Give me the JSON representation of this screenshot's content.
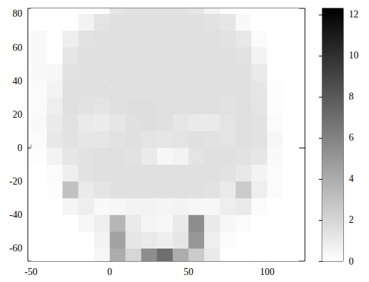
{
  "chart_data": {
    "type": "heatmap",
    "x": [
      -45,
      -35,
      -25,
      -15,
      -5,
      5,
      15,
      25,
      35,
      45,
      55,
      65,
      75,
      85,
      95,
      105,
      115
    ],
    "y": [
      85,
      75,
      65,
      55,
      45,
      35,
      25,
      15,
      5,
      -5,
      -15,
      -25,
      -35,
      -45,
      -55,
      -65
    ],
    "values": [
      [
        0,
        0,
        0,
        0,
        0,
        1.2,
        1.4,
        1.4,
        1.4,
        1.4,
        1.2,
        0.6,
        0,
        0,
        0,
        0,
        0
      ],
      [
        0,
        0,
        0,
        0.6,
        1.3,
        1.5,
        1.5,
        1.5,
        1.5,
        1.5,
        1.5,
        1.4,
        1.2,
        0.3,
        0,
        0,
        0
      ],
      [
        0.3,
        0,
        0.8,
        1.4,
        1.5,
        1.5,
        1.5,
        1.5,
        1.5,
        1.5,
        1.5,
        1.5,
        1.4,
        1.1,
        0.2,
        0,
        0
      ],
      [
        0.3,
        0,
        1.2,
        1.5,
        1.5,
        1.5,
        1.5,
        1.5,
        1.5,
        1.5,
        1.5,
        1.5,
        1.5,
        1.4,
        0.6,
        0,
        0
      ],
      [
        0.3,
        0.4,
        1.4,
        1.5,
        1.5,
        1.5,
        1.5,
        1.5,
        1.5,
        1.5,
        1.5,
        1.5,
        1.5,
        1.5,
        1.0,
        0,
        0
      ],
      [
        0.2,
        0.6,
        1.5,
        1.5,
        1.5,
        1.5,
        1.5,
        1.5,
        1.5,
        1.5,
        1.5,
        1.5,
        1.5,
        1.5,
        1.2,
        0.1,
        0
      ],
      [
        0.2,
        0.8,
        1.5,
        1.4,
        1.3,
        1.5,
        1.6,
        1.6,
        1.5,
        1.5,
        1.5,
        1.5,
        1.4,
        1.5,
        1.3,
        0.1,
        0
      ],
      [
        0.3,
        1.0,
        1.4,
        1.0,
        0.9,
        1.2,
        1.5,
        1.6,
        1.5,
        1.2,
        1.0,
        1.0,
        1.3,
        1.5,
        1.4,
        0.2,
        0
      ],
      [
        0.2,
        1.1,
        1.4,
        1.2,
        1.2,
        1.4,
        1.5,
        1.3,
        1.2,
        1.3,
        1.5,
        1.4,
        1.3,
        1.5,
        1.4,
        0.4,
        0
      ],
      [
        0.1,
        0.6,
        1.2,
        1.4,
        1.5,
        1.5,
        1.4,
        1.0,
        0.4,
        0.6,
        1.3,
        1.5,
        1.5,
        1.4,
        1.2,
        0.3,
        0
      ],
      [
        0,
        0.2,
        0.8,
        1.4,
        1.5,
        1.5,
        1.5,
        1.5,
        1.5,
        1.5,
        1.5,
        1.5,
        1.4,
        1.1,
        0.6,
        0.2,
        0
      ],
      [
        0,
        0.1,
        3.0,
        1.0,
        1.3,
        1.5,
        1.5,
        1.5,
        1.5,
        1.5,
        1.5,
        1.4,
        1.0,
        2.5,
        0.8,
        0.2,
        0
      ],
      [
        0,
        0,
        0.5,
        0.8,
        0.3,
        0.4,
        0.6,
        0.6,
        0.5,
        0.6,
        0.4,
        0.4,
        0.8,
        1.0,
        0.2,
        0,
        0
      ],
      [
        0,
        0,
        0,
        0.4,
        0.8,
        3.5,
        1.0,
        0.5,
        0.4,
        1.0,
        5.5,
        1.0,
        0.4,
        0.2,
        0,
        0,
        0
      ],
      [
        0,
        0,
        0,
        0,
        0.6,
        4.5,
        1.2,
        1.0,
        0.8,
        1.2,
        5.0,
        0.8,
        0.2,
        0,
        0,
        0,
        0
      ],
      [
        0,
        0,
        0,
        0,
        0.4,
        4.0,
        2.0,
        5.5,
        7.0,
        4.0,
        2.5,
        1.0,
        0,
        0,
        0,
        0,
        0
      ]
    ],
    "xlim": [
      -52,
      124
    ],
    "ylim": [
      -67.5,
      83.3
    ],
    "xticks": [
      -50,
      0,
      50,
      100
    ],
    "yticks": [
      -60,
      -40,
      -20,
      0,
      20,
      40,
      60,
      80
    ],
    "colorbar": {
      "range": [
        0,
        12.3
      ],
      "ticks": [
        0,
        2,
        4,
        6,
        8,
        10,
        12
      ]
    }
  }
}
